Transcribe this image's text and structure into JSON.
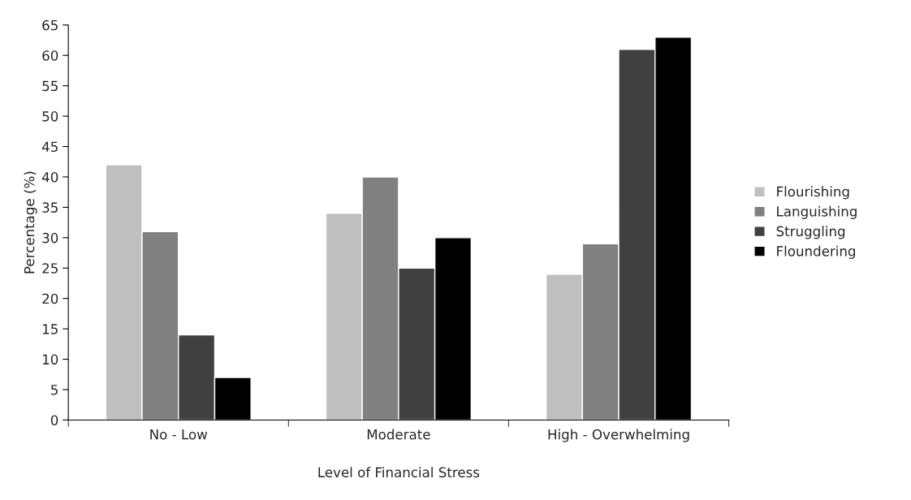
{
  "chart_data": {
    "type": "bar",
    "xlabel": "Level of Financial Stress",
    "ylabel": "Percentage (%)",
    "categories": [
      "No - Low",
      "Moderate",
      "High - Overwhelming"
    ],
    "series": [
      {
        "name": "Flourishing",
        "color": "#bfbfbf",
        "values": [
          42,
          34,
          24
        ]
      },
      {
        "name": "Languishing",
        "color": "#808080",
        "values": [
          31,
          40,
          29
        ]
      },
      {
        "name": "Struggling",
        "color": "#404040",
        "values": [
          14,
          25,
          61
        ]
      },
      {
        "name": "Floundering",
        "color": "#000000",
        "values": [
          7,
          30,
          63
        ]
      }
    ],
    "ylim": [
      0,
      65
    ],
    "yticks": [
      0,
      5,
      10,
      15,
      20,
      25,
      30,
      35,
      40,
      45,
      50,
      55,
      60,
      65
    ],
    "grid": false,
    "legend": "right"
  }
}
